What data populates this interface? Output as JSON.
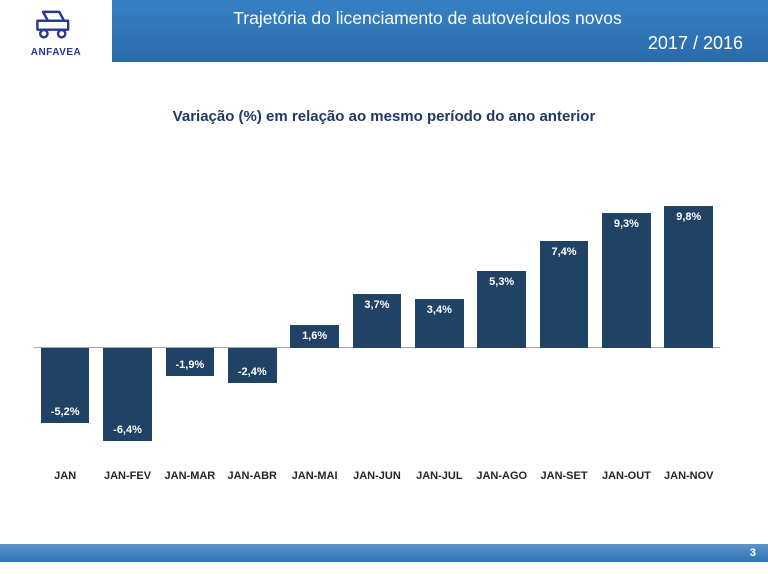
{
  "header": {
    "title_line1": "Trajetória do licenciamento de autoveículos novos",
    "title_line2": "2017 / 2016",
    "logo_text": "ANFAVEA"
  },
  "subtitle": "Variação (%) em relação ao mesmo período do ano anterior",
  "footer": {
    "page_number": "3"
  },
  "colors": {
    "header_blue": "#2E74B5",
    "bar_navy": "#1F4265",
    "title_navy": "#1F3864",
    "axis_gray": "#A6A6A6"
  },
  "chart_data": {
    "type": "bar",
    "title": "Variação (%) em relação ao mesmo período do ano anterior",
    "categories": [
      "JAN",
      "JAN-FEV",
      "JAN-MAR",
      "JAN-ABR",
      "JAN-MAI",
      "JAN-JUN",
      "JAN-JUL",
      "JAN-AGO",
      "JAN-SET",
      "JAN-OUT",
      "JAN-NOV"
    ],
    "values": [
      -5.2,
      -6.4,
      -1.9,
      -2.4,
      1.6,
      3.7,
      3.4,
      5.3,
      7.4,
      9.3,
      9.8
    ],
    "labels": [
      "-5,2%",
      "-6,4%",
      "-1,9%",
      "-2,4%",
      "1,6%",
      "3,7%",
      "3,4%",
      "5,3%",
      "7,4%",
      "9,3%",
      "9,8%"
    ],
    "bar_color": "#1F4265",
    "value_label_color": "#FFFFFF",
    "xlabel": "",
    "ylabel": "Variação (%)",
    "ylim": [
      -8,
      12
    ],
    "grid": false,
    "legend": false,
    "value_label_position": "inside"
  }
}
